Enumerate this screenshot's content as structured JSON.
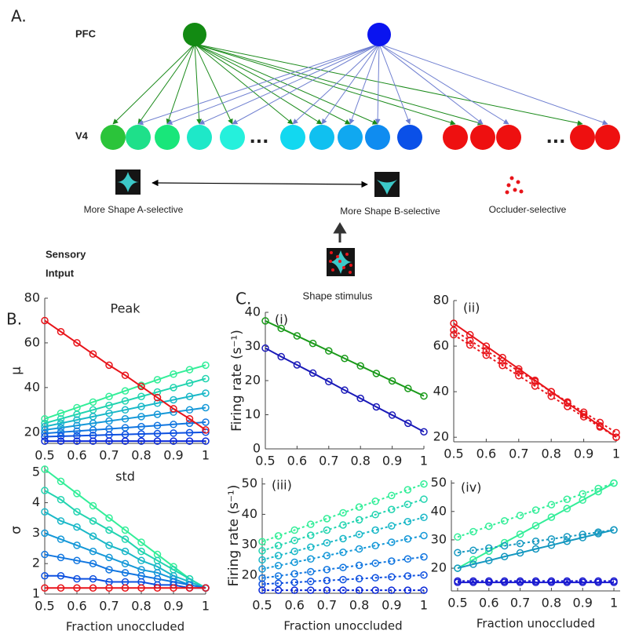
{
  "panel_a": {
    "label": "A.",
    "pfc_label": "PFC",
    "v4_label": "V4",
    "ellipsis": [
      "...",
      "..."
    ],
    "shape_a_label": "More Shape A-selective",
    "shape_b_label": "More Shape B-selective",
    "occluder_label": "Occluder-selective",
    "sensory_label": [
      "Sensory",
      "Intput"
    ],
    "stimulus_label": "Shape stimulus"
  },
  "panels": {
    "b_label": "B.",
    "c_label": "C."
  },
  "chart_data": [
    {
      "type": "line",
      "title": "Peak",
      "ylabel": "μ",
      "x": [
        0.5,
        0.55,
        0.6,
        0.65,
        0.7,
        0.75,
        0.8,
        0.85,
        0.9,
        0.95,
        1
      ],
      "xlim": [
        0.5,
        1
      ],
      "ylim": [
        15,
        80
      ],
      "xticks": [
        0.5,
        0.6,
        0.7,
        0.8,
        0.9,
        1
      ],
      "yticks": [
        20,
        40,
        60,
        80
      ],
      "series": [
        {
          "color": "#33ee99",
          "dashed": false,
          "values": [
            26,
            28.5,
            31,
            33.5,
            36,
            38.5,
            41,
            43.5,
            46,
            48,
            50
          ]
        },
        {
          "color": "#22d4b0",
          "dashed": false,
          "values": [
            24,
            26,
            28,
            30,
            32,
            34,
            36,
            38,
            40,
            42,
            44
          ]
        },
        {
          "color": "#1ab8c8",
          "dashed": false,
          "values": [
            22.5,
            24,
            25.5,
            27,
            28.5,
            30,
            31.5,
            33,
            34.5,
            36,
            37.5
          ]
        },
        {
          "color": "#1598d8",
          "dashed": false,
          "values": [
            21,
            22,
            23,
            24,
            25,
            26,
            27,
            28,
            29,
            30,
            31
          ]
        },
        {
          "color": "#1176e0",
          "dashed": false,
          "values": [
            19.5,
            20,
            20.5,
            21,
            21.5,
            22,
            22.5,
            23,
            23.5,
            24,
            24.5
          ]
        },
        {
          "color": "#0d50e0",
          "dashed": false,
          "values": [
            18,
            18.2,
            18.4,
            18.6,
            18.8,
            19,
            19.2,
            19.4,
            19.6,
            19.8,
            20
          ]
        },
        {
          "color": "#0a28d8",
          "dashed": false,
          "values": [
            16,
            16,
            16,
            16,
            16,
            16,
            16,
            16,
            16,
            16,
            16
          ]
        },
        {
          "color": "#e8141a",
          "dashed": false,
          "values": [
            70,
            65,
            60,
            55,
            50,
            45.5,
            40.5,
            35.5,
            30.5,
            26,
            21
          ]
        }
      ]
    },
    {
      "type": "line",
      "title": "std",
      "ylabel": "σ",
      "xlabel": "Fraction unoccluded",
      "x": [
        0.5,
        0.55,
        0.6,
        0.65,
        0.7,
        0.75,
        0.8,
        0.85,
        0.9,
        0.95,
        1
      ],
      "xlim": [
        0.5,
        1
      ],
      "ylim": [
        1,
        5.2
      ],
      "xticks": [
        0.5,
        0.6,
        0.7,
        0.8,
        0.9,
        1
      ],
      "yticks": [
        1,
        2,
        3,
        4,
        5
      ],
      "series": [
        {
          "color": "#33ee99",
          "dashed": false,
          "values": [
            5.1,
            4.7,
            4.3,
            3.9,
            3.5,
            3.1,
            2.7,
            2.3,
            1.9,
            1.5,
            1.2
          ]
        },
        {
          "color": "#22d4b0",
          "dashed": false,
          "values": [
            4.4,
            4.1,
            3.7,
            3.4,
            3.1,
            2.8,
            2.4,
            2.1,
            1.8,
            1.5,
            1.2
          ]
        },
        {
          "color": "#1ab8c8",
          "dashed": false,
          "values": [
            3.7,
            3.4,
            3.2,
            2.9,
            2.6,
            2.4,
            2.1,
            1.9,
            1.6,
            1.4,
            1.2
          ]
        },
        {
          "color": "#1598d8",
          "dashed": false,
          "values": [
            3.0,
            2.8,
            2.6,
            2.4,
            2.2,
            2.0,
            1.8,
            1.7,
            1.5,
            1.3,
            1.2
          ]
        },
        {
          "color": "#1176e0",
          "dashed": false,
          "values": [
            2.3,
            2.2,
            2.1,
            2.0,
            1.8,
            1.7,
            1.6,
            1.5,
            1.4,
            1.3,
            1.2
          ]
        },
        {
          "color": "#0d50e0",
          "dashed": false,
          "values": [
            1.6,
            1.6,
            1.5,
            1.5,
            1.4,
            1.4,
            1.4,
            1.3,
            1.3,
            1.2,
            1.2
          ]
        },
        {
          "color": "#e8141a",
          "dashed": false,
          "values": [
            1.2,
            1.2,
            1.2,
            1.2,
            1.2,
            1.2,
            1.2,
            1.2,
            1.2,
            1.2,
            1.2
          ]
        }
      ]
    },
    {
      "type": "line",
      "annotation": "(i)",
      "ylabel": "Firing rate (s⁻¹)",
      "x": [
        0.5,
        0.55,
        0.6,
        0.65,
        0.7,
        0.75,
        0.8,
        0.85,
        0.9,
        0.95,
        1
      ],
      "xlim": [
        0.5,
        1
      ],
      "ylim": [
        0,
        40
      ],
      "xticks": [
        0.5,
        0.6,
        0.7,
        0.8,
        0.9,
        1
      ],
      "yticks": [
        0,
        10,
        20,
        30,
        40
      ],
      "series": [
        {
          "color": "#1a9a1a",
          "dashed": false,
          "values": [
            37.5,
            35.3,
            33.1,
            30.9,
            28.7,
            26.5,
            24.3,
            22.1,
            19.9,
            17.7,
            15.5
          ]
        },
        {
          "color": "#1a1ab8",
          "dashed": false,
          "values": [
            29.5,
            27,
            24.6,
            22.2,
            19.7,
            17.2,
            14.8,
            12.3,
            9.9,
            7.5,
            5
          ]
        }
      ]
    },
    {
      "type": "line",
      "annotation": "(ii)",
      "x": [
        0.5,
        0.55,
        0.6,
        0.65,
        0.7,
        0.75,
        0.8,
        0.85,
        0.9,
        0.95,
        1
      ],
      "xlim": [
        0.5,
        1
      ],
      "ylim": [
        18,
        80
      ],
      "xticks": [
        0.5,
        0.6,
        0.7,
        0.8,
        0.9,
        1
      ],
      "yticks": [
        20,
        40,
        60,
        80
      ],
      "series": [
        {
          "color": "#e8141a",
          "dashed": true,
          "values": [
            67,
            62.5,
            58,
            53.5,
            49,
            44.5,
            40,
            35.5,
            31,
            26.5,
            22
          ]
        },
        {
          "color": "#e8141a",
          "dashed": true,
          "values": [
            65,
            60.5,
            56,
            51.5,
            47,
            42.5,
            38,
            33.5,
            29,
            24.5,
            20
          ]
        },
        {
          "color": "#e8141a",
          "dashed": false,
          "values": [
            70,
            65,
            60,
            55,
            50,
            45,
            40,
            35,
            30,
            25,
            20
          ]
        }
      ]
    },
    {
      "type": "line",
      "annotation": "(iii)",
      "ylabel": "Firing rate (s⁻¹)",
      "xlabel": "Fraction unoccluded",
      "x": [
        0.5,
        0.55,
        0.6,
        0.65,
        0.7,
        0.75,
        0.8,
        0.85,
        0.9,
        0.95,
        1
      ],
      "xlim": [
        0.5,
        1
      ],
      "ylim": [
        14,
        52
      ],
      "xticks": [
        0.5,
        0.6,
        0.7,
        0.8,
        0.9,
        1
      ],
      "yticks": [
        20,
        30,
        40,
        50
      ],
      "series": [
        {
          "color": "#33ee99",
          "dashed": true,
          "values": [
            31,
            32.9,
            34.8,
            36.7,
            38.6,
            40.5,
            42.4,
            44.3,
            46.2,
            48.1,
            50
          ]
        },
        {
          "color": "#22d4b0",
          "dashed": true,
          "values": [
            28,
            29.7,
            31.4,
            33.1,
            34.8,
            36.5,
            38.2,
            39.9,
            41.6,
            43.3,
            45
          ]
        },
        {
          "color": "#1ab8c8",
          "dashed": true,
          "values": [
            25,
            26.4,
            27.8,
            29.2,
            30.6,
            32,
            33.4,
            34.8,
            36.2,
            37.6,
            39
          ]
        },
        {
          "color": "#1598d8",
          "dashed": true,
          "values": [
            22,
            23.1,
            24.2,
            25.3,
            26.4,
            27.5,
            28.6,
            29.7,
            30.8,
            31.9,
            33
          ]
        },
        {
          "color": "#1176e0",
          "dashed": true,
          "values": [
            19,
            19.7,
            20.4,
            21.1,
            21.8,
            22.5,
            23.2,
            23.9,
            24.6,
            25.3,
            26
          ]
        },
        {
          "color": "#0d50e0",
          "dashed": true,
          "values": [
            17,
            17.3,
            17.6,
            17.9,
            18.2,
            18.5,
            18.8,
            19.1,
            19.4,
            19.7,
            20
          ]
        },
        {
          "color": "#0a28d8",
          "dashed": true,
          "values": [
            15,
            15,
            15,
            15,
            15,
            15,
            15,
            15,
            15,
            15,
            15
          ]
        }
      ]
    },
    {
      "type": "line",
      "annotation": "(iv)",
      "xlabel": "Fraction unoccluded",
      "x": [
        0.5,
        0.55,
        0.6,
        0.65,
        0.7,
        0.75,
        0.8,
        0.85,
        0.9,
        0.95,
        1
      ],
      "xlim": [
        0.48,
        1.02
      ],
      "ylim": [
        12,
        51
      ],
      "xticks": [
        0.5,
        0.6,
        0.7,
        0.8,
        0.9,
        1
      ],
      "yticks": [
        20,
        30,
        40,
        50
      ],
      "series": [
        {
          "color": "#33ee99",
          "dashed": false,
          "values": [
            20,
            23,
            26,
            29,
            32,
            35,
            38,
            41,
            44,
            47,
            50
          ]
        },
        {
          "color": "#33ee99",
          "dashed": true,
          "values": [
            31,
            32.9,
            34.8,
            36.7,
            38.6,
            40.5,
            42.4,
            44.3,
            46.2,
            48.1,
            50
          ]
        },
        {
          "color": "#1598c0",
          "dashed": false,
          "values": [
            20,
            21.4,
            22.7,
            24.1,
            25.4,
            26.8,
            28.1,
            29.5,
            30.8,
            32.2,
            33.5
          ]
        },
        {
          "color": "#1598c0",
          "dashed": true,
          "values": [
            25.5,
            26.3,
            27.1,
            27.9,
            28.7,
            29.5,
            30.3,
            31.1,
            31.9,
            32.7,
            33.5
          ]
        },
        {
          "color": "#1a1ad0",
          "dashed": false,
          "values": [
            15,
            15,
            15,
            15,
            15,
            15,
            15,
            15,
            15,
            15,
            15
          ]
        },
        {
          "color": "#1a1ad0",
          "dashed": true,
          "values": [
            15.5,
            15.5,
            15.5,
            15.5,
            15.5,
            15.5,
            15.5,
            15.5,
            15.5,
            15.5,
            15.5
          ]
        }
      ]
    }
  ]
}
